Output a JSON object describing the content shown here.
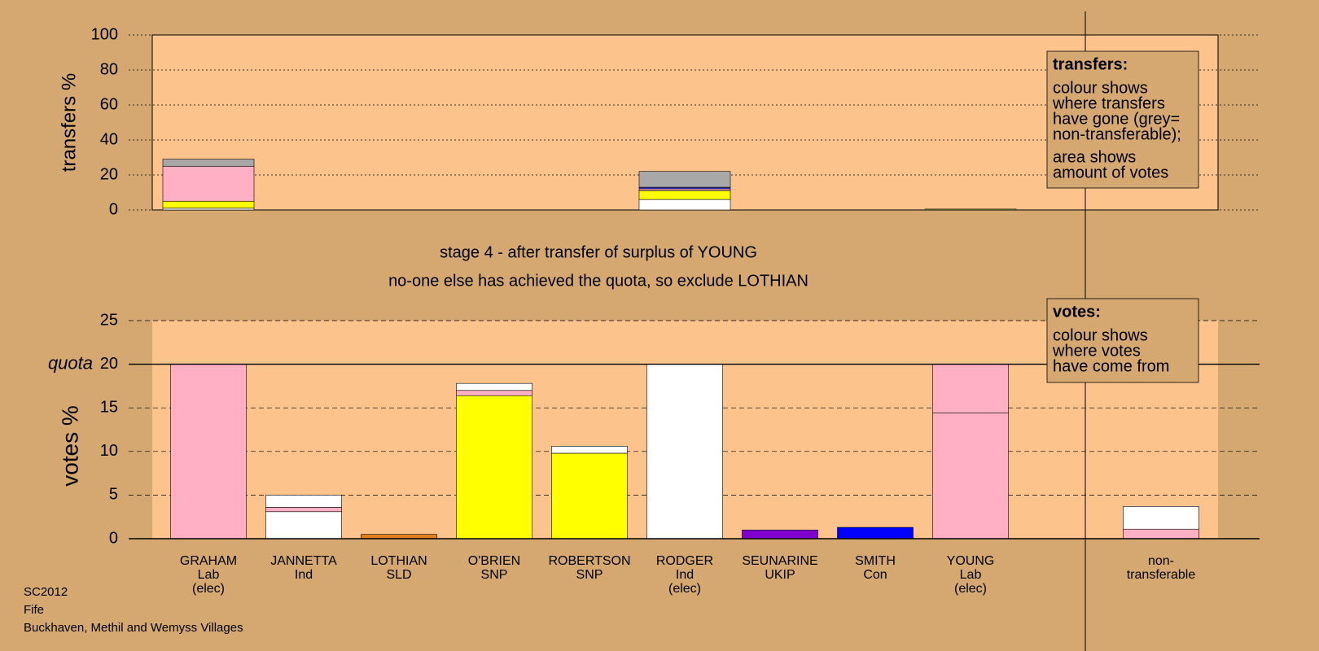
{
  "chart_data": [
    {
      "type": "stacked-bar",
      "ylabel": "transfers %",
      "ylim": [
        0,
        100
      ],
      "yticks": [
        0,
        20,
        40,
        60,
        80,
        100
      ],
      "grid": true,
      "series": [
        {
          "color": "#ffffff",
          "values": [
            1,
            0,
            0,
            0,
            0,
            6,
            0,
            0,
            0,
            0
          ]
        },
        {
          "color": "#ffff00",
          "values": [
            4,
            0,
            0,
            0,
            0,
            5,
            0,
            0,
            0,
            0
          ]
        },
        {
          "color": "#ffb0c4",
          "values": [
            20,
            0,
            0,
            0,
            0,
            1,
            0,
            0,
            0,
            0
          ]
        },
        {
          "color": "#3030c0",
          "values": [
            0,
            0,
            0,
            0,
            0,
            1,
            0,
            0,
            0,
            0
          ]
        },
        {
          "color": "#a8a8a8",
          "values": [
            4,
            0,
            0,
            0,
            0,
            9,
            0,
            0,
            0,
            0
          ]
        },
        {
          "color": "#a0c040",
          "values": [
            0,
            0,
            0,
            0,
            0,
            0,
            0,
            0,
            0.5,
            0
          ]
        }
      ],
      "annotation": {
        "title": "transfers:",
        "lines": [
          "colour shows",
          "where transfers",
          "have gone (grey=",
          "non-transferable);",
          "area shows",
          "amount of votes"
        ]
      }
    },
    {
      "type": "stacked-bar",
      "ylabel": "votes %",
      "ylim": [
        0,
        25
      ],
      "yticks": [
        0,
        5,
        10,
        15,
        20,
        25
      ],
      "grid": true,
      "subtitle": [
        "stage 4 - after transfer of surplus of YOUNG",
        "no-one else has achieved the quota, so exclude LOTHIAN"
      ],
      "quota": {
        "value": 20,
        "label": "quota"
      },
      "categories": [
        [
          "GRAHAM",
          "Lab",
          "(elec)"
        ],
        [
          "JANNETTA",
          "Ind"
        ],
        [
          "LOTHIAN",
          "SLD"
        ],
        [
          "O'BRIEN",
          "SNP"
        ],
        [
          "ROBERTSON",
          "SNP"
        ],
        [
          "RODGER",
          "Ind",
          "(elec)"
        ],
        [
          "SEUNARINE",
          "UKIP"
        ],
        [
          "SMITH",
          "Con"
        ],
        [
          "YOUNG",
          "Lab",
          "(elec)"
        ],
        [
          "non-",
          "transferable"
        ]
      ],
      "series": [
        {
          "color": "#ffb0c4",
          "values": [
            20,
            0,
            0,
            0,
            0,
            0,
            0,
            0,
            14.4,
            1.1
          ]
        },
        {
          "color": "#ffffff",
          "values": [
            0,
            3.1,
            0,
            0,
            0,
            20,
            0,
            0,
            0,
            2.6
          ]
        },
        {
          "color": "#e08020",
          "values": [
            0,
            0,
            0.5,
            0,
            0,
            0,
            0,
            0,
            0,
            0
          ]
        },
        {
          "color": "#ffff00",
          "values": [
            0,
            0,
            0,
            16.4,
            9.8,
            0,
            0,
            0,
            0,
            0
          ]
        },
        {
          "color": "#8000d0",
          "values": [
            0,
            0,
            0,
            0,
            0,
            0,
            1.0,
            0,
            0,
            0
          ]
        },
        {
          "color": "#0000ff",
          "values": [
            0,
            0,
            0,
            0,
            0,
            0,
            0,
            1.3,
            0,
            0
          ]
        },
        {
          "color": "#ffb0c4",
          "values": [
            0,
            0.5,
            0,
            0.6,
            0,
            0,
            0,
            0,
            5.6,
            0
          ]
        },
        {
          "color": "#ffffff",
          "values": [
            0,
            1.4,
            0,
            0.8,
            0.8,
            0,
            0,
            0,
            0,
            0
          ]
        }
      ],
      "annotation": {
        "title": "votes:",
        "lines": [
          "colour shows",
          "where votes",
          "have come from"
        ]
      }
    }
  ],
  "footer": [
    "SC2012",
    "Fife",
    "Buckhaven, Methil and Wemyss Villages"
  ]
}
